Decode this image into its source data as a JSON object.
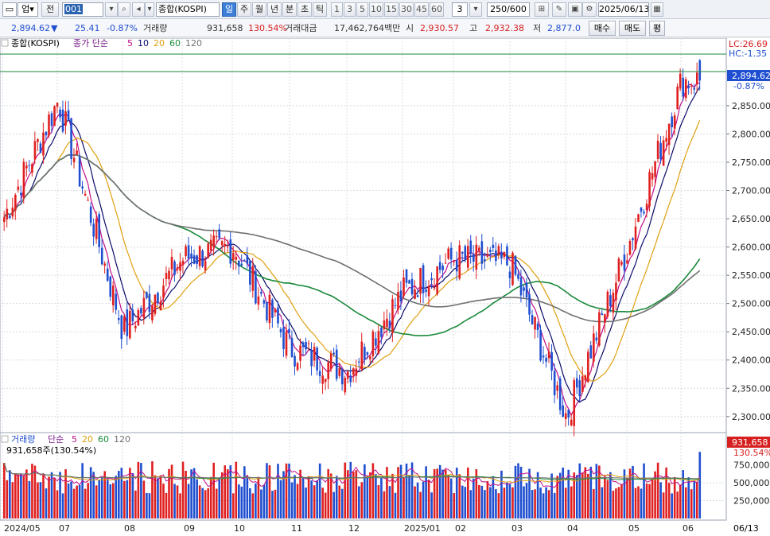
{
  "toolbar": {
    "market_select": "업",
    "prefix_label": "전",
    "code_input": "001",
    "name": "종합(KOSPI)",
    "periods": [
      "일",
      "주",
      "월",
      "년",
      "분",
      "초",
      "틱"
    ],
    "selected_period": "일",
    "minute_options": [
      "1",
      "3",
      "5",
      "10",
      "15",
      "30",
      "45",
      "60"
    ],
    "interval_value": "3",
    "count": "250/600",
    "date": "2025/06/13"
  },
  "info": {
    "price": "2,894.62",
    "arrow": "▼",
    "change": "25.41",
    "change_pct": "-0.87%",
    "volume_label": "거래량",
    "volume": "931,658",
    "volume_pct": "130.54%",
    "amount_label": "거래대금",
    "amount": "17,462,764백만",
    "open_label": "시",
    "open": "2,930.57",
    "high_label": "고",
    "high": "2,932.38",
    "low_label": "저",
    "low": "2,877.0",
    "sell_button": "매수",
    "buy_button": "매도",
    "extra_button": "평"
  },
  "price_chart": {
    "legend_name": "종합(KOSPI)",
    "legend_ma_label": "종가 단순",
    "ma_periods": [
      "5",
      "10",
      "20",
      "60",
      "120"
    ],
    "ma_colors": [
      "#c0108a",
      "#0a0a6a",
      "#e0a010",
      "#1a8a3a",
      "#707070"
    ],
    "lc_label": "LC:26.69",
    "hc_label": "HC:-1.35",
    "last_price_label": "2,894.62",
    "last_pct_label": "-0.87%",
    "y_ticks": [
      "2,850.00",
      "2,800.00",
      "2,750.00",
      "2,700.00",
      "2,650.00",
      "2,600.00",
      "2,550.00",
      "2,500.00",
      "2,450.00",
      "2,400.00",
      "2,350.00",
      "2,300.00"
    ]
  },
  "volume_chart": {
    "legend_name": "거래량",
    "legend_ma_label": "단순",
    "ma_periods": [
      "5",
      "20",
      "60",
      "120"
    ],
    "ma_colors": [
      "#c0108a",
      "#e0a010",
      "#1a8a3a",
      "#707070"
    ],
    "current_label": "931,658주(130.54%)",
    "last_value_label": "931,658",
    "last_pct_label": "130.54%",
    "y_ticks": [
      "500,000",
      "250,000"
    ],
    "y_tick_partial": "750,000"
  },
  "x_axis": {
    "labels": [
      "2024/05",
      "07",
      "08",
      "09",
      "10",
      "11",
      "12",
      "2025/01",
      "02",
      "03",
      "04",
      "05",
      "06"
    ],
    "cursor_label": "06/13"
  },
  "chart_data": {
    "type": "candlestick",
    "series_name": "종합(KOSPI)",
    "period": "daily",
    "x_range": [
      "2024/05",
      "2025/06/13"
    ],
    "ylim": [
      2280,
      2950
    ],
    "anchors": [
      {
        "date": "2024/05",
        "close": 2650
      },
      {
        "date": "2024/07",
        "close": 2860
      },
      {
        "date": "2024/08",
        "close": 2450
      },
      {
        "date": "2024/09",
        "close": 2580
      },
      {
        "date": "2024/10",
        "close": 2600
      },
      {
        "date": "2024/11",
        "close": 2420
      },
      {
        "date": "2024/12",
        "close": 2380
      },
      {
        "date": "2025/01",
        "close": 2520
      },
      {
        "date": "2025/02",
        "close": 2580
      },
      {
        "date": "2025/03",
        "close": 2570
      },
      {
        "date": "2025/04",
        "close": 2300
      },
      {
        "date": "2025/05",
        "close": 2600
      },
      {
        "date": "2025/06/13",
        "close": 2894.62
      }
    ],
    "last": {
      "open": 2930.57,
      "high": 2932.38,
      "low": 2877.0,
      "close": 2894.62,
      "volume": 931658
    },
    "reference_lines": [
      2910,
      2894.62
    ]
  }
}
